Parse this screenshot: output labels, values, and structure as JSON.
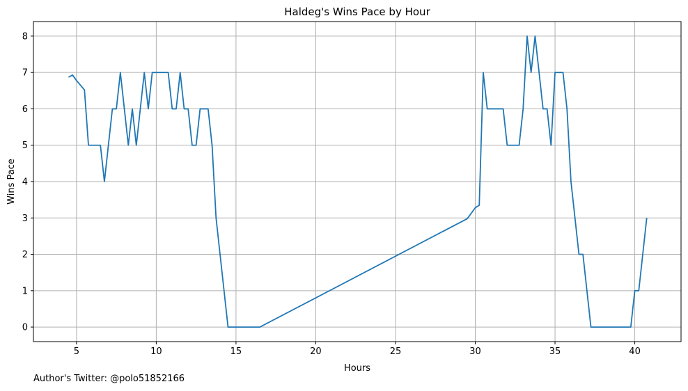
{
  "chart_data": {
    "type": "line",
    "title": "Haldeg's Wins Pace by Hour",
    "xlabel": "Hours",
    "ylabel": "Wins Pace",
    "xlim": [
      2.3,
      42.9
    ],
    "ylim": [
      -0.4,
      8.4
    ],
    "xticks": [
      5,
      10,
      15,
      20,
      25,
      30,
      35,
      40
    ],
    "yticks": [
      0,
      1,
      2,
      3,
      4,
      5,
      6,
      7,
      8
    ],
    "grid": true,
    "line_color": "#1f77b4",
    "series": [
      {
        "x": [
          4.5,
          4.75,
          5.0,
          5.5,
          5.75,
          6.0,
          6.25,
          6.5,
          6.75,
          7.0,
          7.25,
          7.5,
          7.75,
          8.0,
          8.25,
          8.5,
          8.75,
          9.0,
          9.25,
          9.5,
          9.75,
          10.0,
          10.25,
          10.5,
          10.75,
          11.0,
          11.25,
          11.5,
          11.75,
          12.0,
          12.25,
          12.5,
          12.75,
          13.0,
          13.25,
          13.5,
          13.75,
          14.0,
          14.25,
          14.5,
          15.0,
          16.5,
          29.5,
          30.0,
          30.25,
          30.5,
          30.75,
          31.0,
          31.5,
          31.75,
          32.0,
          32.25,
          32.5,
          32.75,
          33.0,
          33.25,
          33.5,
          33.75,
          34.0,
          34.25,
          34.5,
          34.75,
          35.0,
          35.25,
          35.5,
          35.75,
          36.0,
          36.25,
          36.5,
          36.75,
          37.0,
          37.25,
          37.5,
          38.0,
          39.75,
          40.0,
          40.25,
          40.5,
          40.75
        ],
        "y": [
          6.87,
          6.93,
          6.78,
          6.52,
          5.0,
          5.0,
          5.0,
          5.0,
          4.0,
          5.0,
          6.0,
          6.0,
          7.0,
          6.0,
          5.0,
          6.0,
          5.0,
          6.0,
          7.0,
          6.0,
          7.0,
          7.0,
          7.0,
          7.0,
          7.0,
          6.0,
          6.0,
          7.0,
          6.0,
          6.0,
          5.0,
          5.0,
          6.0,
          6.0,
          6.0,
          5.0,
          3.0,
          2.0,
          1.0,
          0.0,
          0.0,
          0.0,
          2.98,
          3.28,
          3.35,
          7.0,
          6.0,
          6.0,
          6.0,
          6.0,
          5.0,
          5.0,
          5.0,
          5.0,
          6.0,
          8.0,
          7.0,
          8.0,
          7.0,
          6.0,
          6.0,
          5.0,
          7.0,
          7.0,
          7.0,
          6.0,
          4.0,
          3.0,
          2.0,
          2.0,
          1.0,
          0.0,
          0.0,
          0.0,
          0.0,
          1.0,
          1.0,
          2.0,
          3.0
        ]
      }
    ]
  },
  "footer": {
    "caption": "Author's Twitter: @polo51852166"
  }
}
